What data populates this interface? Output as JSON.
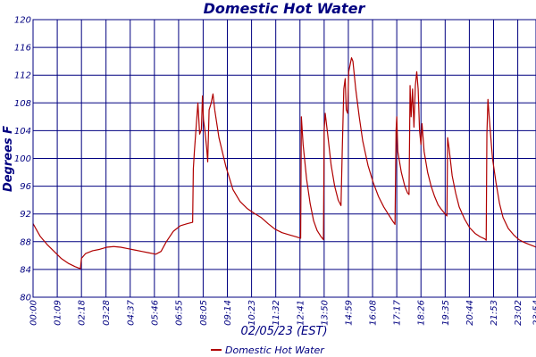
{
  "chart_data": {
    "type": "line",
    "title": "Domestic Hot Water",
    "xlabel": "02/05/23 (EST)",
    "ylabel": "Degrees F",
    "ylim": [
      80,
      120
    ],
    "yticks": [
      80,
      84,
      88,
      92,
      96,
      100,
      104,
      108,
      112,
      116,
      120
    ],
    "xticks": [
      "00:00",
      "01:09",
      "02:18",
      "03:28",
      "04:37",
      "05:46",
      "06:55",
      "08:05",
      "09:14",
      "10:23",
      "11:32",
      "12:41",
      "13:50",
      "14:59",
      "16:08",
      "17:17",
      "18:26",
      "19:35",
      "20:44",
      "21:53",
      "23:02",
      "23:54"
    ],
    "grid": true,
    "legend_position": "bottom",
    "colors": {
      "series": "#b00000",
      "axes": "#000080"
    },
    "series": [
      {
        "name": "Domestic Hot Water",
        "points": [
          [
            "00:00",
            90.6
          ],
          [
            "00:20",
            88.8
          ],
          [
            "00:40",
            87.6
          ],
          [
            "01:00",
            86.6
          ],
          [
            "01:20",
            85.6
          ],
          [
            "01:40",
            84.9
          ],
          [
            "02:00",
            84.4
          ],
          [
            "02:10",
            84.2
          ],
          [
            "02:15",
            84.1
          ],
          [
            "02:18",
            85.6
          ],
          [
            "02:30",
            86.3
          ],
          [
            "02:50",
            86.7
          ],
          [
            "03:10",
            86.9
          ],
          [
            "03:30",
            87.2
          ],
          [
            "03:50",
            87.3
          ],
          [
            "04:10",
            87.2
          ],
          [
            "04:30",
            87.0
          ],
          [
            "04:50",
            86.8
          ],
          [
            "05:10",
            86.6
          ],
          [
            "05:30",
            86.4
          ],
          [
            "05:50",
            86.2
          ],
          [
            "06:05",
            86.6
          ],
          [
            "06:20",
            88.0
          ],
          [
            "06:40",
            89.5
          ],
          [
            "07:00",
            90.3
          ],
          [
            "07:20",
            90.6
          ],
          [
            "07:35",
            90.8
          ],
          [
            "07:37",
            98.5
          ],
          [
            "07:40",
            101.0
          ],
          [
            "07:45",
            104.5
          ],
          [
            "07:50",
            108.0
          ],
          [
            "07:55",
            103.5
          ],
          [
            "08:00",
            104.2
          ],
          [
            "08:03",
            109.0
          ],
          [
            "08:06",
            105.5
          ],
          [
            "08:10",
            104.0
          ],
          [
            "08:15",
            101.5
          ],
          [
            "08:18",
            99.5
          ],
          [
            "08:22",
            107.0
          ],
          [
            "08:28",
            108.0
          ],
          [
            "08:33",
            109.3
          ],
          [
            "08:38",
            107.0
          ],
          [
            "08:50",
            103.0
          ],
          [
            "09:10",
            98.8
          ],
          [
            "09:30",
            95.5
          ],
          [
            "09:50",
            93.8
          ],
          [
            "10:10",
            92.8
          ],
          [
            "10:30",
            92.1
          ],
          [
            "10:50",
            91.5
          ],
          [
            "11:10",
            90.6
          ],
          [
            "11:30",
            89.8
          ],
          [
            "11:50",
            89.3
          ],
          [
            "12:10",
            89.0
          ],
          [
            "12:30",
            88.7
          ],
          [
            "12:43",
            88.5
          ],
          [
            "12:45",
            106.0
          ],
          [
            "12:50",
            102.0
          ],
          [
            "13:00",
            97.0
          ],
          [
            "13:10",
            93.5
          ],
          [
            "13:20",
            91.0
          ],
          [
            "13:30",
            89.6
          ],
          [
            "13:40",
            88.8
          ],
          [
            "13:48",
            88.3
          ],
          [
            "13:50",
            104.0
          ],
          [
            "13:53",
            106.5
          ],
          [
            "14:00",
            103.5
          ],
          [
            "14:10",
            99.0
          ],
          [
            "14:20",
            96.0
          ],
          [
            "14:30",
            94.0
          ],
          [
            "14:38",
            93.2
          ],
          [
            "14:42",
            102.0
          ],
          [
            "14:46",
            110.0
          ],
          [
            "14:50",
            111.5
          ],
          [
            "14:53",
            107.0
          ],
          [
            "14:57",
            106.5
          ],
          [
            "15:00",
            112.5
          ],
          [
            "15:04",
            113.5
          ],
          [
            "15:08",
            114.5
          ],
          [
            "15:12",
            114.0
          ],
          [
            "15:20",
            110.0
          ],
          [
            "15:30",
            106.0
          ],
          [
            "15:40",
            102.5
          ],
          [
            "15:55",
            99.0
          ],
          [
            "16:10",
            96.5
          ],
          [
            "16:25",
            94.5
          ],
          [
            "16:40",
            93.0
          ],
          [
            "16:55",
            91.8
          ],
          [
            "17:05",
            91.0
          ],
          [
            "17:12",
            90.5
          ],
          [
            "17:15",
            104.0
          ],
          [
            "17:17",
            106.0
          ],
          [
            "17:20",
            101.0
          ],
          [
            "17:30",
            98.0
          ],
          [
            "17:40",
            96.0
          ],
          [
            "17:48",
            95.0
          ],
          [
            "17:52",
            94.8
          ],
          [
            "17:55",
            110.5
          ],
          [
            "17:58",
            106.0
          ],
          [
            "18:02",
            110.0
          ],
          [
            "18:06",
            104.5
          ],
          [
            "18:10",
            110.5
          ],
          [
            "18:14",
            112.5
          ],
          [
            "18:18",
            110.0
          ],
          [
            "18:22",
            104.0
          ],
          [
            "18:26",
            102.0
          ],
          [
            "18:29",
            105.0
          ],
          [
            "18:35",
            101.0
          ],
          [
            "18:45",
            98.0
          ],
          [
            "18:55",
            96.0
          ],
          [
            "19:05",
            94.5
          ],
          [
            "19:15",
            93.3
          ],
          [
            "19:25",
            92.6
          ],
          [
            "19:35",
            92.0
          ],
          [
            "19:40",
            91.7
          ],
          [
            "19:42",
            103.0
          ],
          [
            "19:46",
            101.5
          ],
          [
            "19:55",
            97.5
          ],
          [
            "20:05",
            95.0
          ],
          [
            "20:15",
            93.0
          ],
          [
            "20:30",
            91.3
          ],
          [
            "20:45",
            90.0
          ],
          [
            "21:00",
            89.2
          ],
          [
            "21:15",
            88.7
          ],
          [
            "21:28",
            88.4
          ],
          [
            "21:32",
            88.2
          ],
          [
            "21:34",
            103.5
          ],
          [
            "21:37",
            108.5
          ],
          [
            "21:42",
            105.0
          ],
          [
            "21:50",
            100.0
          ],
          [
            "22:00",
            96.5
          ],
          [
            "22:10",
            93.5
          ],
          [
            "22:20",
            91.5
          ],
          [
            "22:35",
            89.9
          ],
          [
            "22:50",
            89.0
          ],
          [
            "23:05",
            88.3
          ],
          [
            "23:20",
            87.9
          ],
          [
            "23:35",
            87.6
          ],
          [
            "23:50",
            87.3
          ],
          [
            "23:54",
            87.2
          ]
        ]
      }
    ]
  }
}
